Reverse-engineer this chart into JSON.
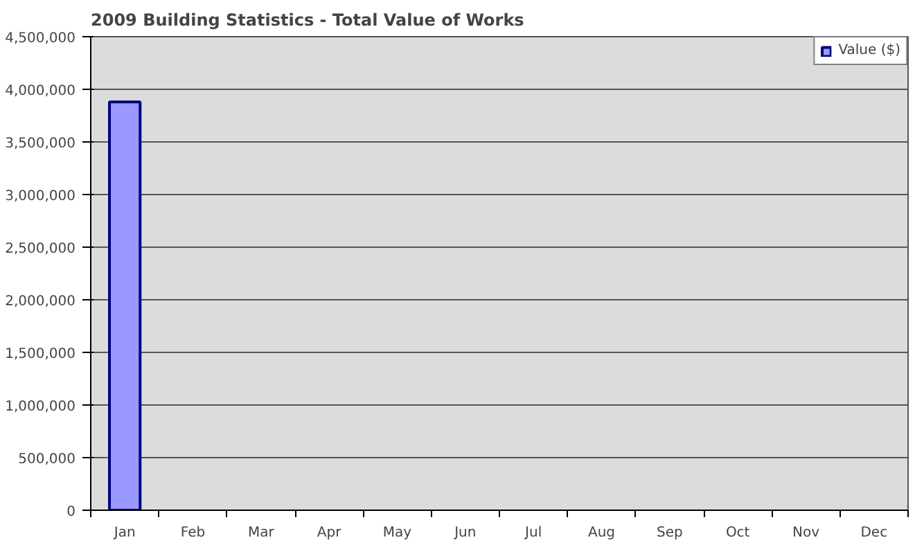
{
  "chart_data": {
    "type": "bar",
    "title": "2009 Building Statistics - Total Value of Works",
    "categories": [
      "Jan",
      "Feb",
      "Mar",
      "Apr",
      "May",
      "Jun",
      "Jul",
      "Aug",
      "Sep",
      "Oct",
      "Nov",
      "Dec"
    ],
    "series": [
      {
        "name": "Value ($)",
        "color": "#9999ff",
        "values": [
          3880000,
          null,
          null,
          null,
          null,
          null,
          null,
          null,
          null,
          null,
          null,
          null
        ]
      }
    ],
    "ylim": [
      0,
      4500000
    ],
    "yticks": [
      {
        "value": 0,
        "label": "0"
      },
      {
        "value": 500000,
        "label": "500,000"
      },
      {
        "value": 1000000,
        "label": "1,000,000"
      },
      {
        "value": 1500000,
        "label": "1,500,000"
      },
      {
        "value": 2000000,
        "label": "2,000,000"
      },
      {
        "value": 2500000,
        "label": "2,500,000"
      },
      {
        "value": 3000000,
        "label": "3,000,000"
      },
      {
        "value": 3500000,
        "label": "3,500,000"
      },
      {
        "value": 4000000,
        "label": "4,000,000"
      },
      {
        "value": 4500000,
        "label": "4,500,000"
      }
    ],
    "grid": "y",
    "legend": "top right"
  }
}
